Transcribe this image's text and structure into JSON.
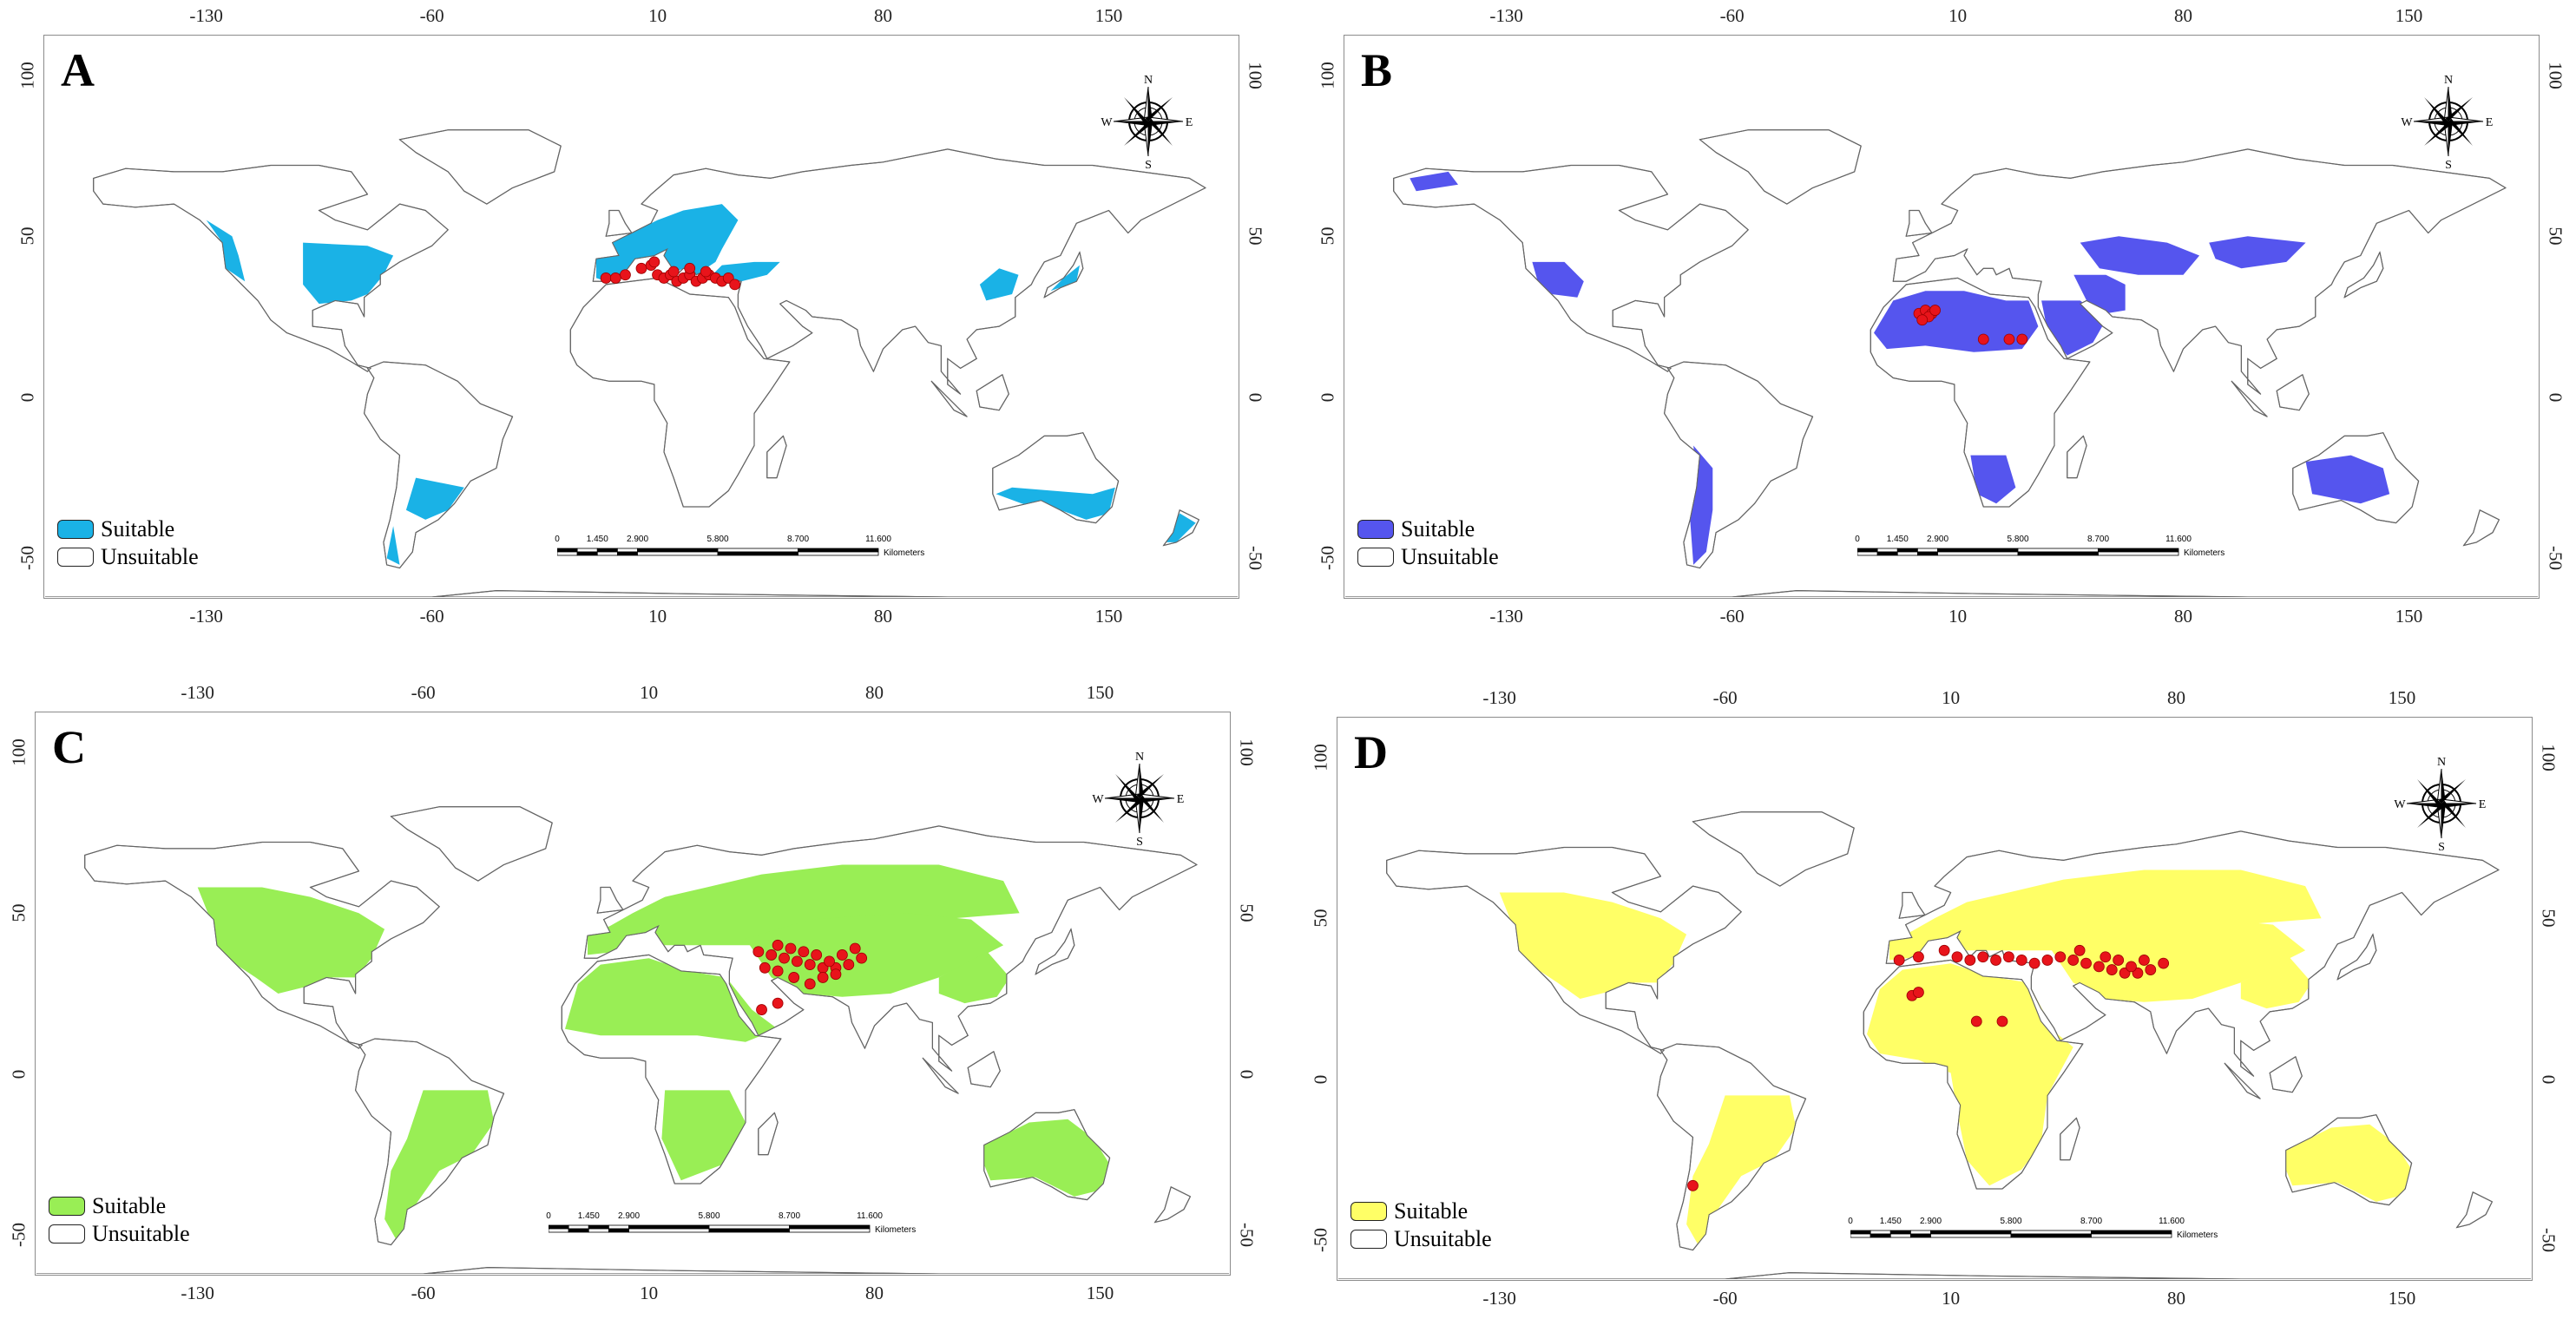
{
  "figure": {
    "x_ticks": [
      "-130",
      "-60",
      "10",
      "80",
      "150"
    ],
    "y_ticks": [
      "100",
      "50",
      "0",
      "-50"
    ],
    "legend": {
      "suitable": "Suitable",
      "unsuitable": "Unsuitable"
    },
    "compass": {
      "n": "N",
      "s": "S",
      "e": "E",
      "w": "W"
    },
    "scale": {
      "labels": [
        "0",
        "1.450",
        "2.900",
        "5.800",
        "8.700",
        "11.600"
      ],
      "unit": "Kilometers"
    }
  },
  "panels": [
    {
      "letter": "A",
      "suitable_color": "#1ab2e6",
      "regions": [
        "north-america-east",
        "pacific-nw",
        "europe-med",
        "turkey-caucasus",
        "east-asia",
        "japan",
        "south-america-south",
        "australia-south",
        "new-zealand"
      ],
      "occurrences": [
        [
          -6,
          37
        ],
        [
          0,
          38
        ],
        [
          5,
          40
        ],
        [
          8,
          41
        ],
        [
          10,
          38
        ],
        [
          12,
          37
        ],
        [
          14,
          38
        ],
        [
          16,
          36
        ],
        [
          18,
          37
        ],
        [
          20,
          38
        ],
        [
          22,
          36
        ],
        [
          24,
          37
        ],
        [
          26,
          38
        ],
        [
          28,
          37
        ],
        [
          30,
          36
        ],
        [
          32,
          37
        ],
        [
          34,
          35
        ],
        [
          15,
          39
        ],
        [
          20,
          40
        ],
        [
          25,
          39
        ],
        [
          -3,
          37
        ],
        [
          9,
          42
        ]
      ]
    },
    {
      "letter": "B",
      "suitable_color": "#5555ee",
      "regions": [
        "sw-usa",
        "sahara",
        "arabia",
        "iran",
        "central-asia",
        "mongolia",
        "south-america-andes",
        "southern-africa",
        "australia-interior",
        "alaska"
      ],
      "occurrences": [
        [
          -2,
          26
        ],
        [
          0,
          27
        ],
        [
          2,
          26
        ],
        [
          1,
          25
        ],
        [
          -1,
          24
        ],
        [
          3,
          27
        ],
        [
          18,
          18
        ],
        [
          26,
          18
        ],
        [
          30,
          18
        ]
      ]
    },
    {
      "letter": "C",
      "suitable_color": "#99ee55",
      "regions": [
        "north-america-broad",
        "sahara-broad",
        "europe-broad",
        "central-asia-broad",
        "china",
        "south-america",
        "africa-south",
        "australia-broad"
      ],
      "occurrences": [
        [
          44,
          38
        ],
        [
          48,
          37
        ],
        [
          52,
          36
        ],
        [
          56,
          35
        ],
        [
          60,
          34
        ],
        [
          64,
          33
        ],
        [
          68,
          33
        ],
        [
          72,
          34
        ],
        [
          76,
          36
        ],
        [
          50,
          40
        ],
        [
          54,
          39
        ],
        [
          58,
          38
        ],
        [
          62,
          37
        ],
        [
          66,
          35
        ],
        [
          70,
          37
        ],
        [
          74,
          39
        ],
        [
          46,
          33
        ],
        [
          50,
          32
        ],
        [
          55,
          30
        ],
        [
          60,
          28
        ],
        [
          64,
          30
        ],
        [
          68,
          31
        ],
        [
          45,
          20
        ],
        [
          50,
          22
        ]
      ]
    },
    {
      "letter": "D",
      "suitable_color": "#ffff66",
      "regions": [
        "north-america-broad",
        "europe-broad",
        "africa-broad",
        "central-asia-broad",
        "china",
        "south-america",
        "australia-broad"
      ],
      "occurrences": [
        [
          -6,
          37
        ],
        [
          0,
          38
        ],
        [
          8,
          40
        ],
        [
          12,
          38
        ],
        [
          16,
          37
        ],
        [
          20,
          38
        ],
        [
          24,
          37
        ],
        [
          28,
          38
        ],
        [
          32,
          37
        ],
        [
          36,
          36
        ],
        [
          40,
          37
        ],
        [
          44,
          38
        ],
        [
          48,
          37
        ],
        [
          52,
          36
        ],
        [
          56,
          35
        ],
        [
          60,
          34
        ],
        [
          64,
          33
        ],
        [
          68,
          33
        ],
        [
          72,
          34
        ],
        [
          76,
          36
        ],
        [
          -2,
          26
        ],
        [
          0,
          27
        ],
        [
          18,
          18
        ],
        [
          26,
          18
        ],
        [
          50,
          40
        ],
        [
          58,
          38
        ],
        [
          62,
          37
        ],
        [
          66,
          35
        ],
        [
          70,
          37
        ],
        [
          -70,
          -33
        ]
      ]
    }
  ]
}
